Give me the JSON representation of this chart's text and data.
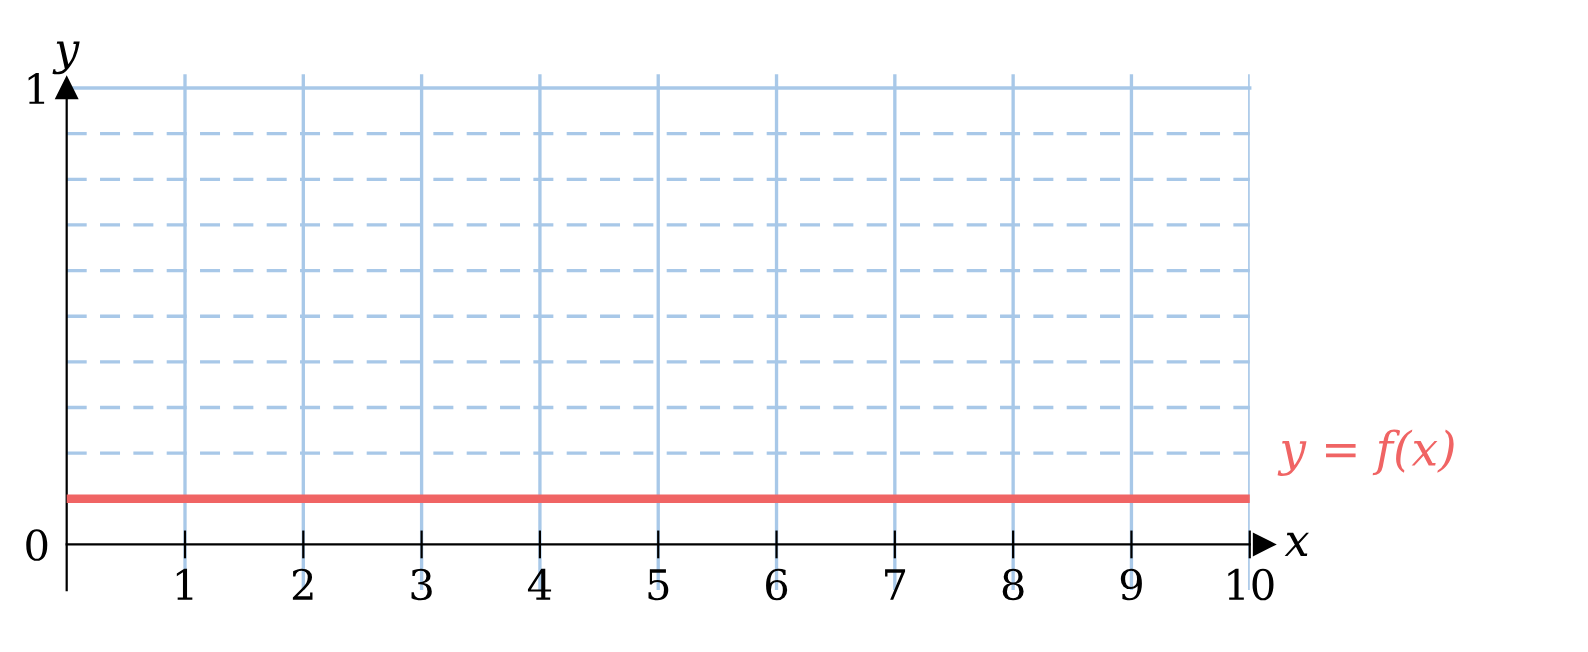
{
  "chart_data": {
    "type": "line",
    "xlabel": "x",
    "ylabel": "y",
    "x": [
      0,
      10
    ],
    "series": [
      {
        "name": "y = f(x)",
        "color": "#f06464",
        "values": [
          0.1,
          0.1
        ]
      }
    ],
    "xlim": [
      0,
      10
    ],
    "ylim": [
      -0.1,
      1.03
    ],
    "xticks": [
      1,
      2,
      3,
      4,
      5,
      6,
      7,
      8,
      9,
      10
    ],
    "yticks": [
      0,
      1
    ],
    "grid": "x",
    "ref_lines": [
      {
        "axis": "y",
        "value": 0.2,
        "color": "#a8c8e8",
        "line_style": "dashed"
      },
      {
        "axis": "y",
        "value": 0.3,
        "color": "#a8c8e8",
        "line_style": "dashed"
      },
      {
        "axis": "y",
        "value": 0.4,
        "color": "#a8c8e8",
        "line_style": "dashed"
      },
      {
        "axis": "y",
        "value": 0.5,
        "color": "#a8c8e8",
        "line_style": "dashed"
      },
      {
        "axis": "y",
        "value": 0.6,
        "color": "#a8c8e8",
        "line_style": "dashed"
      },
      {
        "axis": "y",
        "value": 0.7,
        "color": "#a8c8e8",
        "line_style": "dashed"
      },
      {
        "axis": "y",
        "value": 0.8,
        "color": "#a8c8e8",
        "line_style": "dashed"
      },
      {
        "axis": "y",
        "value": 0.9,
        "color": "#a8c8e8",
        "line_style": "dashed"
      },
      {
        "axis": "y",
        "value": 1,
        "color": "#a8c8e8",
        "line_style": "solid"
      }
    ],
    "legend": false
  }
}
